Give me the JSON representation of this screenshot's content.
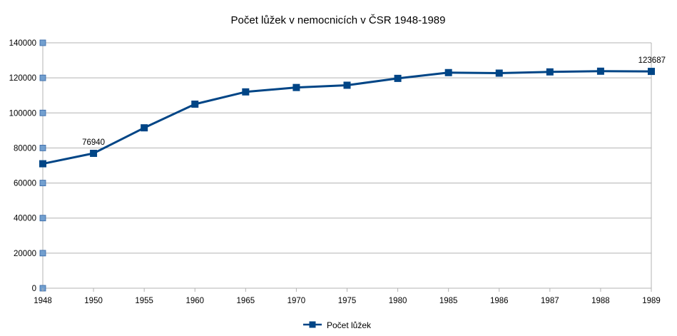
{
  "chart_data": {
    "type": "line",
    "title": "Počet lůžek v nemocnicích v ČSR 1948-1989",
    "xlabel": "",
    "ylabel": "",
    "categories": [
      "1948",
      "1950",
      "1955",
      "1960",
      "1965",
      "1970",
      "1975",
      "1980",
      "1985",
      "1986",
      "1987",
      "1988",
      "1989"
    ],
    "series": [
      {
        "name": "Počet lůžek",
        "values": [
          71000,
          76940,
          91500,
          105000,
          112000,
          114500,
          115800,
          119700,
          123000,
          122700,
          123400,
          123800,
          123687
        ],
        "color": "#004586"
      }
    ],
    "data_labels": [
      {
        "index": 1,
        "text": "76940"
      },
      {
        "index": 12,
        "text": "123687"
      }
    ],
    "ylim": [
      0,
      140000
    ],
    "yticks": [
      0,
      20000,
      40000,
      60000,
      80000,
      100000,
      120000,
      140000
    ],
    "ytick_labels": [
      "0",
      "20000",
      "40000",
      "60000",
      "80000",
      "100000",
      "120000",
      "140000"
    ],
    "grid": true,
    "legend": "bottom",
    "colors": {
      "series": "#004586",
      "grid": "#b3b3b3",
      "tick_marker": "#729fcf",
      "axis": "#b3b3b3"
    }
  }
}
